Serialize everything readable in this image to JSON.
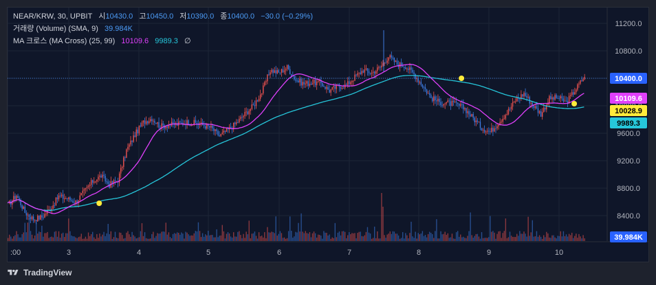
{
  "legend": {
    "symbol": "NEAR/KRW, 30, UPBIT",
    "open_label": "시",
    "open": "10430.0",
    "high_label": "고",
    "high": "10450.0",
    "low_label": "저",
    "low": "10390.0",
    "close_label": "종",
    "close": "10400.0",
    "change": "−30.0 (−0.29%)",
    "volume_label": "거래량 (Volume) (SMA, 9)",
    "volume_value": "39.984K",
    "ma_label": "MA 크로스 (MA Cross) (25, 99)",
    "ma_fast_value": "10109.6",
    "ma_slow_value": "9989.3",
    "ma_suffix": "∅"
  },
  "footer": {
    "brand": "TradingView"
  },
  "colors": {
    "background": "#0f1629",
    "up": "#ef5350",
    "down": "#3d7be0",
    "ma_fast": "#e040fb",
    "ma_slow": "#26c6da",
    "cross_marker": "#ffeb3b",
    "price_line": "#3d7be0"
  },
  "chart_data": {
    "type": "candlestick",
    "y_ticks": [
      "11200.0",
      "10800.0",
      "10400.0",
      "10000.0",
      "9600.0",
      "9200.0",
      "8800.0",
      "8400.0"
    ],
    "y_tick_values": [
      11200,
      10800,
      10400,
      10000,
      9600,
      9200,
      8800,
      8400
    ],
    "ylim": [
      8200,
      11400
    ],
    "x_ticks": [
      ":00",
      "3",
      "4",
      "5",
      "6",
      "7",
      "8",
      "9",
      "10"
    ],
    "price_tags": [
      {
        "label": "10400.0",
        "value": 10400,
        "color": "#2962ff",
        "text_color": "#ffffff"
      },
      {
        "label": "10109.6",
        "value": 10109.6,
        "color": "#e040fb",
        "text_color": "#ffffff"
      },
      {
        "label": "10028.9",
        "value": 10028.9,
        "color": "#ffeb3b",
        "text_color": "#000000"
      },
      {
        "label": "9989.3",
        "value": 9989.3,
        "color": "#26c6da",
        "text_color": "#000000"
      }
    ],
    "volume_tag": {
      "label": "39.984K",
      "color": "#2962ff"
    },
    "close_path": [
      [
        0,
        8550
      ],
      [
        6,
        8700
      ],
      [
        12,
        8450
      ],
      [
        18,
        8350
      ],
      [
        24,
        8380
      ],
      [
        30,
        8500
      ],
      [
        36,
        8680
      ],
      [
        42,
        8650
      ],
      [
        48,
        8600
      ],
      [
        54,
        8750
      ],
      [
        60,
        8900
      ],
      [
        66,
        8980
      ],
      [
        72,
        8850
      ],
      [
        78,
        8920
      ],
      [
        84,
        9350
      ],
      [
        90,
        9580
      ],
      [
        96,
        9760
      ],
      [
        102,
        9820
      ],
      [
        108,
        9700
      ],
      [
        114,
        9720
      ],
      [
        120,
        9730
      ],
      [
        126,
        9760
      ],
      [
        132,
        9750
      ],
      [
        138,
        9720
      ],
      [
        144,
        9680
      ],
      [
        150,
        9560
      ],
      [
        156,
        9650
      ],
      [
        162,
        9750
      ],
      [
        168,
        9880
      ],
      [
        174,
        10000
      ],
      [
        180,
        10200
      ],
      [
        186,
        10520
      ],
      [
        192,
        10480
      ],
      [
        198,
        10560
      ],
      [
        204,
        10380
      ],
      [
        210,
        10320
      ],
      [
        216,
        10340
      ],
      [
        222,
        10330
      ],
      [
        228,
        10220
      ],
      [
        234,
        10280
      ],
      [
        240,
        10300
      ],
      [
        246,
        10420
      ],
      [
        252,
        10520
      ],
      [
        258,
        10480
      ],
      [
        264,
        10560
      ],
      [
        270,
        10720
      ],
      [
        276,
        10610
      ],
      [
        282,
        10580
      ],
      [
        288,
        10460
      ],
      [
        294,
        10300
      ],
      [
        300,
        10120
      ],
      [
        306,
        10050
      ],
      [
        312,
        10040
      ],
      [
        318,
        10020
      ],
      [
        324,
        9960
      ],
      [
        330,
        9820
      ],
      [
        336,
        9680
      ],
      [
        342,
        9620
      ],
      [
        348,
        9760
      ],
      [
        354,
        9900
      ],
      [
        360,
        10080
      ],
      [
        366,
        10180
      ],
      [
        372,
        10020
      ],
      [
        378,
        9880
      ],
      [
        384,
        10100
      ],
      [
        390,
        10120
      ],
      [
        396,
        10050
      ],
      [
        402,
        10220
      ],
      [
        408,
        10400
      ]
    ],
    "cross_points": [
      {
        "x": 65,
        "y": 8580
      },
      {
        "x": 322,
        "y": 10400
      },
      {
        "x": 402,
        "y": 10030
      }
    ]
  }
}
